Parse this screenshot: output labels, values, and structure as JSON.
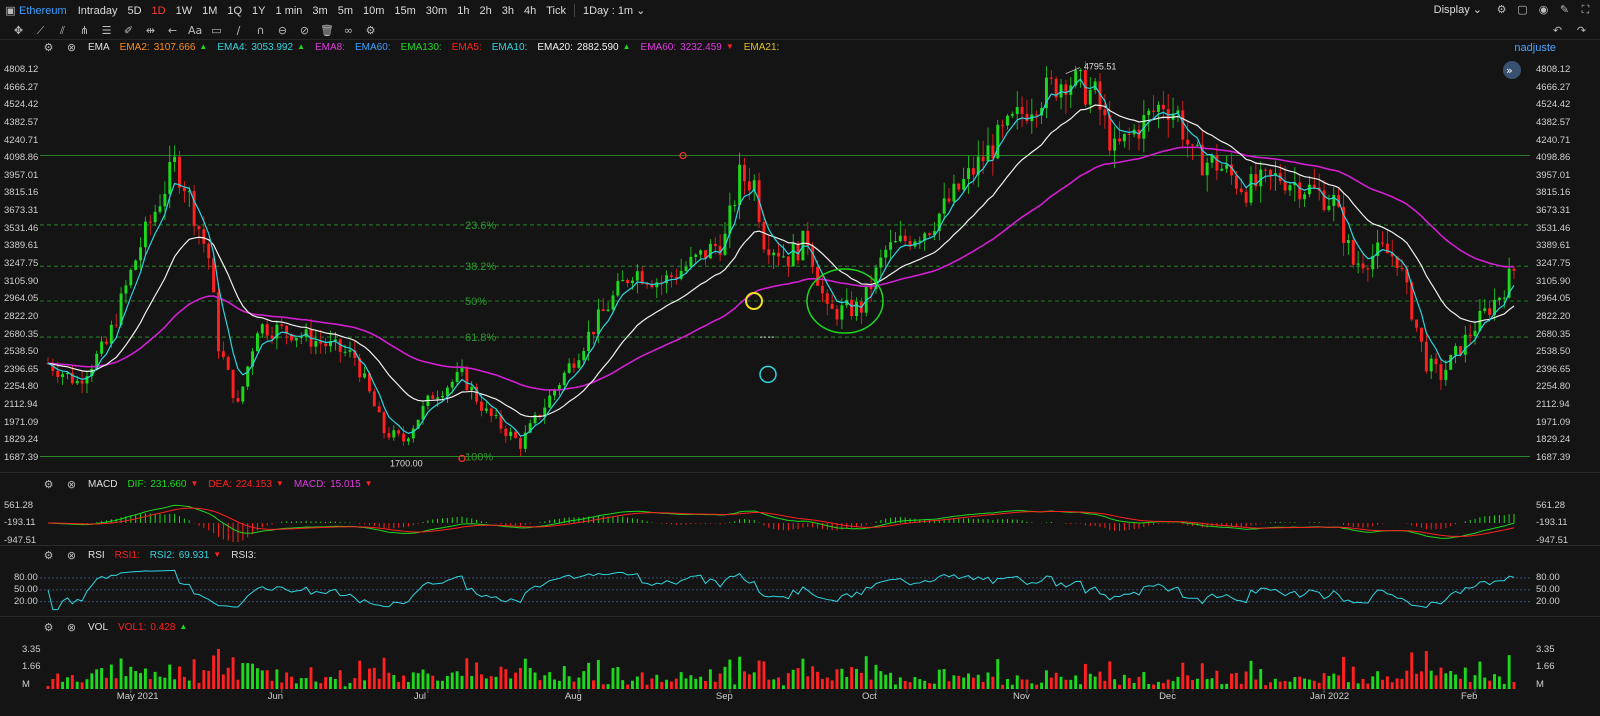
{
  "header": {
    "symbol": "Ethereum",
    "timeframes": [
      "Intraday",
      "5D",
      "1D",
      "1W",
      "1M",
      "1Q",
      "1Y",
      "1 min",
      "3m",
      "5m",
      "10m",
      "15m",
      "30m",
      "1h",
      "2h",
      "3h",
      "4h",
      "Tick"
    ],
    "active_timeframe": "1D",
    "interval_select": "1Day : 1m",
    "display_label": "Display",
    "user": "nadjuste"
  },
  "colors": {
    "up": "#1ed81e",
    "down": "#ff2020",
    "ema_fast": "#2fd5e0",
    "ema20": "#f0f0f0",
    "ema60": "#d020d0",
    "fib": "#2a9a2a"
  },
  "main": {
    "indicator": "EMA",
    "legend": [
      {
        "name": "EMA2:",
        "value": "3107.666",
        "color": "#ff8c1a",
        "arrow": "▲",
        "arrow_color": "#1ed81e"
      },
      {
        "name": "EMA4:",
        "value": "3053.992",
        "color": "#2fd5e0",
        "arrow": "▲",
        "arrow_color": "#1ed81e"
      },
      {
        "name": "EMA8:",
        "value": "",
        "color": "#e03ae0",
        "arrow": "",
        "arrow_color": ""
      },
      {
        "name": "EMA60:",
        "value": "",
        "color": "#3aa0ff",
        "arrow": "",
        "arrow_color": ""
      },
      {
        "name": "EMA130:",
        "value": "",
        "color": "#1ed81e",
        "arrow": "",
        "arrow_color": ""
      },
      {
        "name": "EMA5:",
        "value": "",
        "color": "#ff2020",
        "arrow": "",
        "arrow_color": ""
      },
      {
        "name": "EMA10:",
        "value": "",
        "color": "#2fd5e0",
        "arrow": "",
        "arrow_color": ""
      },
      {
        "name": "EMA20:",
        "value": "2882.590",
        "color": "#f0f0f0",
        "arrow": "▲",
        "arrow_color": "#1ed81e"
      },
      {
        "name": "EMA60:",
        "value": "3232.459",
        "color": "#e03ae0",
        "arrow": "▼",
        "arrow_color": "#ff2020"
      },
      {
        "name": "EMA21:",
        "value": "",
        "color": "#e0c020",
        "arrow": "",
        "arrow_color": ""
      }
    ],
    "price_ticks": [
      "4808.12",
      "4666.27",
      "4524.42",
      "4382.57",
      "4240.71",
      "4098.86",
      "3957.01",
      "3815.16",
      "3673.31",
      "3531.46",
      "3389.61",
      "3247.75",
      "3105.90",
      "2964.05",
      "2822.20",
      "2680.35",
      "2538.50",
      "2396.65",
      "2254.80",
      "2112.94",
      "1971.09",
      "1829.24",
      "1687.39"
    ],
    "fib_labels": [
      "23.6%",
      "38.2%",
      "50%",
      "61.8%",
      "100%"
    ],
    "high_label": "4795.51",
    "low_label": "1700.00"
  },
  "macd": {
    "indicator": "MACD",
    "legend": [
      {
        "name": "DIF:",
        "value": "231.660",
        "color": "#1ed81e",
        "arrow": "▼",
        "arrow_color": "#ff2020"
      },
      {
        "name": "DEA:",
        "value": "224.153",
        "color": "#ff2020",
        "arrow": "▼",
        "arrow_color": "#ff2020"
      },
      {
        "name": "MACD:",
        "value": "15.015",
        "color": "#e03ae0",
        "arrow": "▼",
        "arrow_color": "#ff2020"
      }
    ],
    "ticks": [
      "561.28",
      "-193.11",
      "-947.51"
    ]
  },
  "rsi": {
    "indicator": "RSI",
    "legend": [
      {
        "name": "RSI1:",
        "value": "",
        "color": "#ff2020",
        "arrow": "",
        "arrow_color": ""
      },
      {
        "name": "RSI2:",
        "value": "69.931",
        "color": "#2fd5e0",
        "arrow": "▼",
        "arrow_color": "#ff2020"
      },
      {
        "name": "RSI3:",
        "value": "",
        "color": "#dcdcdc",
        "arrow": "",
        "arrow_color": ""
      }
    ],
    "ticks": [
      "80.00",
      "50.00",
      "20.00"
    ]
  },
  "vol": {
    "indicator": "VOL",
    "legend": [
      {
        "name": "VOL1:",
        "value": "0.428",
        "color": "#ff2020",
        "arrow": "▲",
        "arrow_color": "#1ed81e"
      }
    ],
    "ticks": [
      "3.35",
      "1.66",
      "M"
    ]
  },
  "time_axis": [
    "May 2021",
    "Jun",
    "Jul",
    "Aug",
    "Sep",
    "Oct",
    "Nov",
    "Dec",
    "Jan 2022",
    "Feb"
  ],
  "chart_data": {
    "type": "candlestick",
    "series_name": "Ethereum",
    "anchor_closes": [
      [
        "2021-04-14",
        2450
      ],
      [
        "2021-04-20",
        2300
      ],
      [
        "2021-04-26",
        2600
      ],
      [
        "2021-05-03",
        3400
      ],
      [
        "2021-05-10",
        4050
      ],
      [
        "2021-05-12",
        3900
      ],
      [
        "2021-05-17",
        3300
      ],
      [
        "2021-05-19",
        2600
      ],
      [
        "2021-05-23",
        2100
      ],
      [
        "2021-05-27",
        2750
      ],
      [
        "2021-06-03",
        2700
      ],
      [
        "2021-06-10",
        2600
      ],
      [
        "2021-06-16",
        2500
      ],
      [
        "2021-06-22",
        1900
      ],
      [
        "2021-06-26",
        1830
      ],
      [
        "2021-07-02",
        2200
      ],
      [
        "2021-07-08",
        2350
      ],
      [
        "2021-07-13",
        2050
      ],
      [
        "2021-07-20",
        1800
      ],
      [
        "2021-07-28",
        2300
      ],
      [
        "2021-08-05",
        2800
      ],
      [
        "2021-08-12",
        3200
      ],
      [
        "2021-08-18",
        3100
      ],
      [
        "2021-08-24",
        3250
      ],
      [
        "2021-08-31",
        3450
      ],
      [
        "2021-09-03",
        3950
      ],
      [
        "2021-09-06",
        3900
      ],
      [
        "2021-09-08",
        3450
      ],
      [
        "2021-09-13",
        3300
      ],
      [
        "2021-09-17",
        3450
      ],
      [
        "2021-09-21",
        2850
      ],
      [
        "2021-09-28",
        2900
      ],
      [
        "2021-10-03",
        3350
      ],
      [
        "2021-10-12",
        3550
      ],
      [
        "2021-10-20",
        3950
      ],
      [
        "2021-10-25",
        4200
      ],
      [
        "2021-11-02",
        4550
      ],
      [
        "2021-11-09",
        4750
      ],
      [
        "2021-11-15",
        4600
      ],
      [
        "2021-11-19",
        4150
      ],
      [
        "2021-11-24",
        4350
      ],
      [
        "2021-11-29",
        4550
      ],
      [
        "2021-12-02",
        4450
      ],
      [
        "2021-12-05",
        4100
      ],
      [
        "2021-12-10",
        4050
      ],
      [
        "2021-12-16",
        3850
      ],
      [
        "2021-12-23",
        3950
      ],
      [
        "2021-12-29",
        3850
      ],
      [
        "2022-01-03",
        3750
      ],
      [
        "2022-01-07",
        3250
      ],
      [
        "2022-01-13",
        3350
      ],
      [
        "2022-01-16",
        3300
      ],
      [
        "2022-01-22",
        2450
      ],
      [
        "2022-01-25",
        2350
      ],
      [
        "2022-02-01",
        2750
      ],
      [
        "2022-02-06",
        3000
      ],
      [
        "2022-02-09",
        3200
      ]
    ],
    "high": {
      "date": "2021-11-09",
      "value": 4795.51
    },
    "low": {
      "date": "2021-06-22",
      "value": 1700.0
    },
    "y_range": [
      1687.39,
      4808.12
    ],
    "fib_levels": [
      {
        "label": "23.6%",
        "price": 3562
      },
      {
        "label": "38.2%",
        "price": 3230
      },
      {
        "label": "50%",
        "price": 2950
      },
      {
        "label": "61.8%",
        "price": 2660
      },
      {
        "label": "100%",
        "price": 1700
      }
    ],
    "horizontal_line": 4120,
    "ema_series": [
      "EMA20",
      "EMA60"
    ]
  }
}
